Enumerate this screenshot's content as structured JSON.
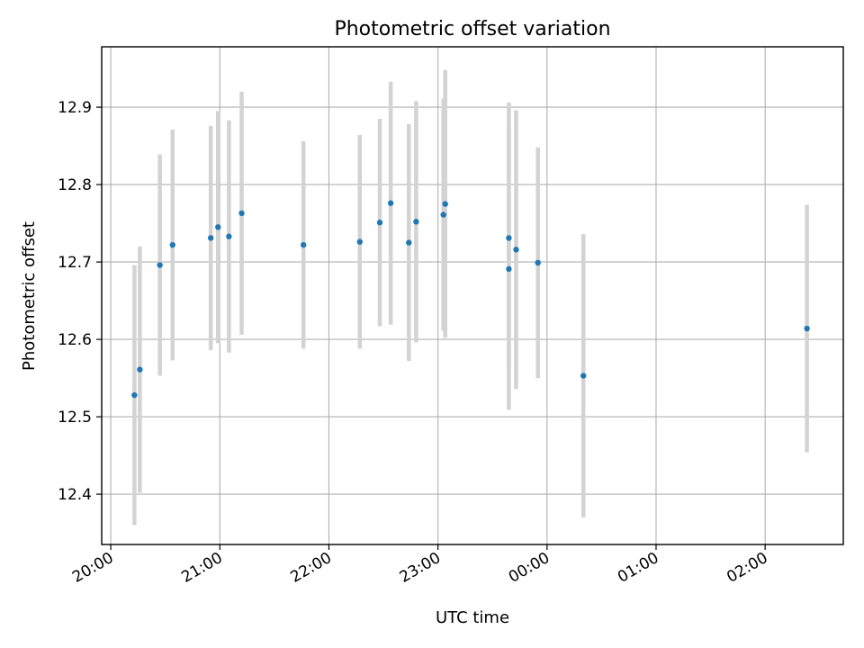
{
  "chart_data": {
    "type": "scatter",
    "title": "Photometric offset variation",
    "xlabel": "UTC time",
    "ylabel": "Photometric offset",
    "x_axis_type": "time",
    "xlim": [
      "19:55",
      "02:43"
    ],
    "ylim": [
      12.335,
      12.978
    ],
    "x_ticks": [
      "20:00",
      "21:00",
      "22:00",
      "23:00",
      "00:00",
      "01:00",
      "02:00"
    ],
    "y_ticks": [
      "12.4",
      "12.5",
      "12.6",
      "12.7",
      "12.8",
      "12.9"
    ],
    "grid": true,
    "colors": {
      "marker": "#1f77b4",
      "error_bar": "#d3d3d3",
      "grid": "#b0b0b0"
    },
    "points": [
      {
        "time": "20:13",
        "y": 12.528,
        "y_err": 0.168
      },
      {
        "time": "20:16",
        "y": 12.561,
        "y_err": 0.159
      },
      {
        "time": "20:27",
        "y": 12.696,
        "y_err": 0.143
      },
      {
        "time": "20:34",
        "y": 12.722,
        "y_err": 0.149
      },
      {
        "time": "20:55",
        "y": 12.731,
        "y_err": 0.145
      },
      {
        "time": "20:59",
        "y": 12.745,
        "y_err": 0.15
      },
      {
        "time": "21:05",
        "y": 12.733,
        "y_err": 0.15
      },
      {
        "time": "21:12",
        "y": 12.763,
        "y_err": 0.157
      },
      {
        "time": "21:46",
        "y": 12.722,
        "y_err": 0.134
      },
      {
        "time": "22:17",
        "y": 12.726,
        "y_err": 0.138
      },
      {
        "time": "22:28",
        "y": 12.751,
        "y_err": 0.134
      },
      {
        "time": "22:34",
        "y": 12.776,
        "y_err": 0.157
      },
      {
        "time": "22:44",
        "y": 12.725,
        "y_err": 0.153
      },
      {
        "time": "22:48",
        "y": 12.752,
        "y_err": 0.156
      },
      {
        "time": "23:03",
        "y": 12.761,
        "y_err": 0.15
      },
      {
        "time": "23:04",
        "y": 12.775,
        "y_err": 0.173
      },
      {
        "time": "23:39",
        "y": 12.731,
        "y_err": 0.175
      },
      {
        "time": "23:39",
        "y": 12.691,
        "y_err": 0.182
      },
      {
        "time": "23:43",
        "y": 12.716,
        "y_err": 0.18
      },
      {
        "time": "23:55",
        "y": 12.699,
        "y_err": 0.149
      },
      {
        "time": "00:20",
        "y": 12.553,
        "y_err": 0.183
      },
      {
        "time": "02:23",
        "y": 12.614,
        "y_err": 0.16
      }
    ]
  }
}
